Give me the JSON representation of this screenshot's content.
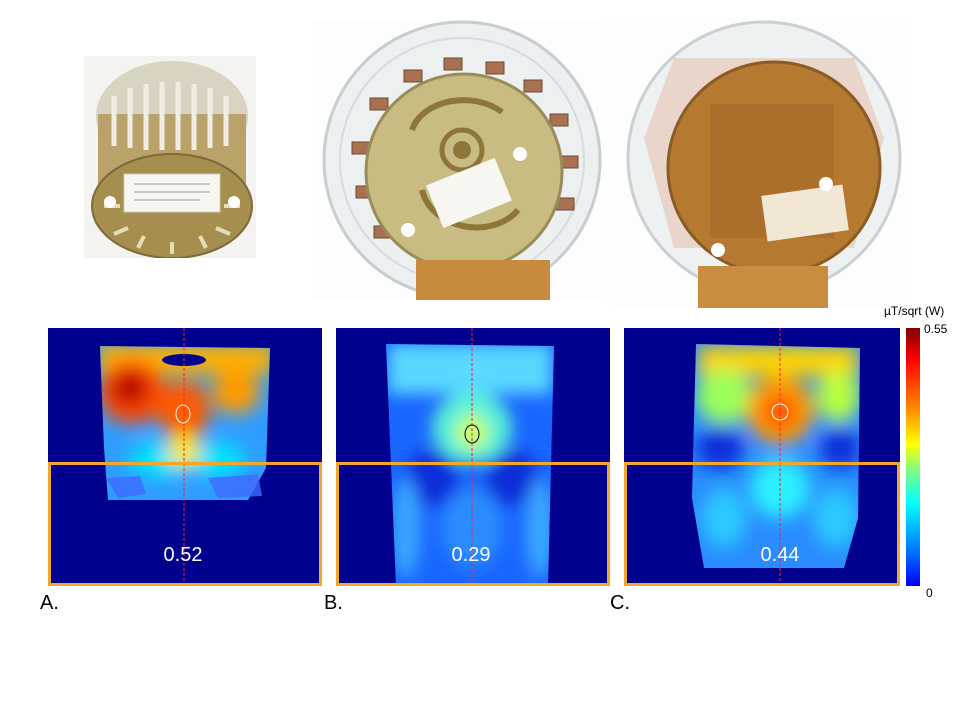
{
  "colorbar": {
    "unit": "µT/sqrt (W)",
    "max": "0.55",
    "min": "0"
  },
  "panels": [
    {
      "label": "A.",
      "value": "0.52"
    },
    {
      "label": "B.",
      "value": "0.29"
    },
    {
      "label": "C.",
      "value": "0.44"
    }
  ],
  "colors": {
    "roi_box": "#f2a72a",
    "marker_line": "#ff0000",
    "background_map": "#00008f"
  }
}
